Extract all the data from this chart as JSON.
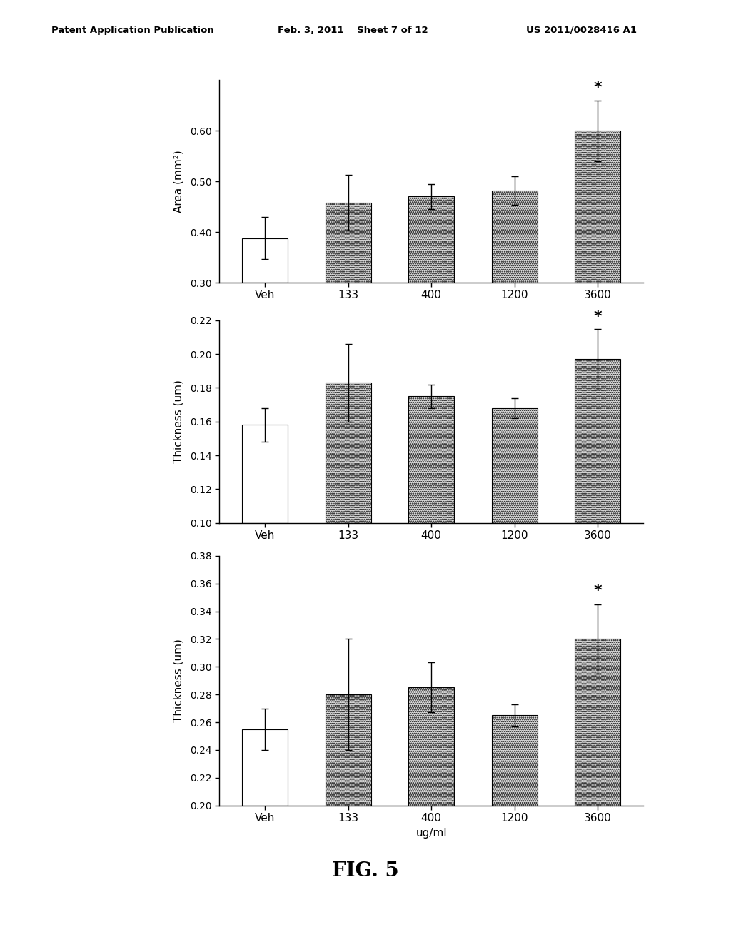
{
  "chart1": {
    "ylabel": "Area (mm²)",
    "ylim": [
      0.3,
      0.7
    ],
    "yticks": [
      0.3,
      0.4,
      0.5,
      0.6
    ],
    "categories": [
      "Veh",
      "133",
      "400",
      "1200",
      "3600"
    ],
    "values": [
      0.388,
      0.458,
      0.47,
      0.482,
      0.6
    ],
    "errors": [
      0.042,
      0.055,
      0.025,
      0.028,
      0.06
    ],
    "bar_colors": [
      "white",
      "stipple",
      "stipple",
      "stipple",
      "stipple"
    ],
    "sig": [
      false,
      false,
      false,
      false,
      true
    ]
  },
  "chart2": {
    "ylabel": "Thickness (um)",
    "ylim": [
      0.1,
      0.22
    ],
    "yticks": [
      0.1,
      0.12,
      0.14,
      0.16,
      0.18,
      0.2,
      0.22
    ],
    "categories": [
      "Veh",
      "133",
      "400",
      "1200",
      "3600"
    ],
    "values": [
      0.158,
      0.183,
      0.175,
      0.168,
      0.197
    ],
    "errors": [
      0.01,
      0.023,
      0.007,
      0.006,
      0.018
    ],
    "bar_colors": [
      "white",
      "stipple",
      "stipple",
      "stipple",
      "stipple"
    ],
    "sig": [
      false,
      false,
      false,
      false,
      true
    ]
  },
  "chart3": {
    "ylabel": "Thickness (um)",
    "xlabel": "ug/ml",
    "ylim": [
      0.2,
      0.38
    ],
    "yticks": [
      0.2,
      0.22,
      0.24,
      0.26,
      0.28,
      0.3,
      0.32,
      0.34,
      0.36,
      0.38
    ],
    "categories": [
      "Veh",
      "133",
      "400",
      "1200",
      "3600"
    ],
    "values": [
      0.255,
      0.28,
      0.285,
      0.265,
      0.32
    ],
    "errors": [
      0.015,
      0.04,
      0.018,
      0.008,
      0.025
    ],
    "bar_colors": [
      "white",
      "stipple",
      "stipple",
      "stipple",
      "stipple"
    ],
    "sig": [
      false,
      false,
      false,
      false,
      true
    ]
  },
  "fig_label": "FIG. 5",
  "header_left": "Patent Application Publication",
  "header_mid": "Feb. 3, 2011    Sheet 7 of 12",
  "header_right": "US 2011/0028416 A1",
  "background_color": "white",
  "bar_edge_color": "black",
  "stipple_facecolor": "#d8d8d8",
  "stipple_hatch": "......"
}
